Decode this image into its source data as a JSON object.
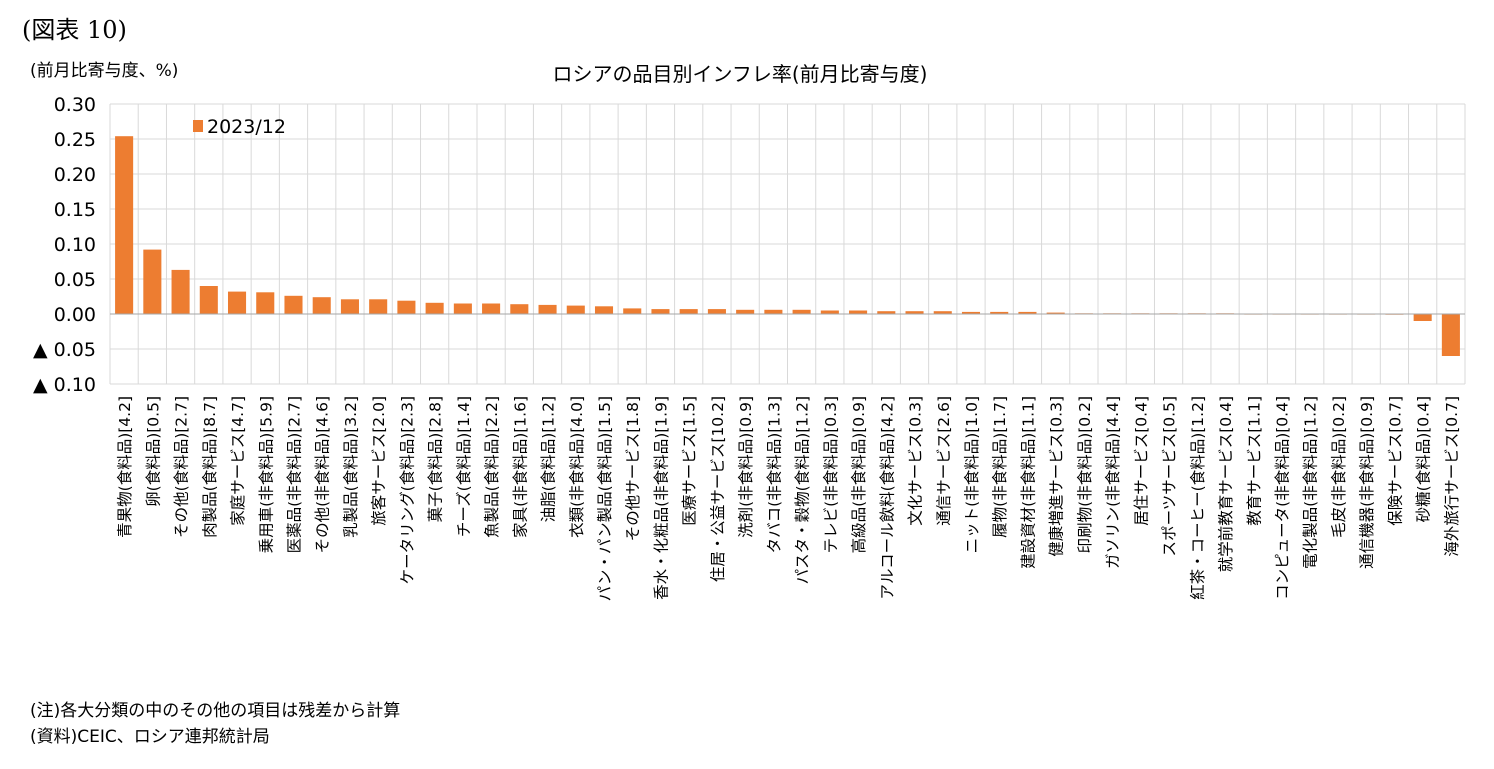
{
  "figure_label": "(図表 10)",
  "unit_label": "(前月比寄与度、%)",
  "notes": [
    "(注)各大分類の中のその他の項目は残差から計算",
    "(資料)CEIC、ロシア連邦統計局"
  ],
  "colors": {
    "bar": "#ED7D31",
    "grid": "#D9D9D9",
    "axis": "#A6A6A6"
  },
  "chart_data": {
    "type": "bar",
    "title": "ロシアの品目別インフレ率(前月比寄与度)",
    "xlabel": "",
    "ylabel": "",
    "ylim": [
      -0.1,
      0.3
    ],
    "yticks": [
      0.3,
      0.25,
      0.2,
      0.15,
      0.1,
      0.05,
      0.0,
      -0.05,
      -0.1
    ],
    "ytick_labels": [
      "0.30",
      "0.25",
      "0.20",
      "0.15",
      "0.10",
      "0.05",
      "0.00",
      "▲ 0.05",
      "▲ 0.10"
    ],
    "grid": true,
    "legend_position": "top-left",
    "categories": [
      "青果物(食料品)[4.2]",
      "卵(食料品)[0.5]",
      "その他(食料品)[2.7]",
      "肉製品(食料品)[8.7]",
      "家庭サービス[4.7]",
      "乗用車(非食料品)[5.9]",
      "医薬品(非食料品)[2.7]",
      "その他(非食料品)[4.6]",
      "乳製品(食料品)[3.2]",
      "旅客サービス[2.0]",
      "ケータリング(食料品)[2.3]",
      "菓子(食料品)[2.8]",
      "チーズ(食料品)[1.4]",
      "魚製品(食料品)[2.2]",
      "家具(非食料品)[1.6]",
      "油脂(食料品)[1.2]",
      "衣類(非食料品)[4.0]",
      "パン・パン製品(食料品)[1.5]",
      "その他サービス[1.8]",
      "香水・化粧品(非食料品)[1.9]",
      "医療サービス[1.5]",
      "住居・公益サービス[10.2]",
      "洗剤(非食料品)[0.9]",
      "タバコ(非食料品)[1.3]",
      "パスタ・穀物(食料品)[1.2]",
      "テレビ(非食料品)[0.3]",
      "高級品(非食料品)[0.9]",
      "アルコール飲料(食料品)[4.2]",
      "文化サービス[0.3]",
      "通信サービス[2.6]",
      "ニット(非食料品)[1.0]",
      "履物(非食料品)[1.7]",
      "建設資材(非食料品)[1.1]",
      "健康増進サービス[0.3]",
      "印刷物(非食料品)[0.2]",
      "ガソリン(非食料品)[4.4]",
      "居住サービス[0.4]",
      "スポーツサービス[0.5]",
      "紅茶・コーヒー(食料品)[1.2]",
      "就学前教育サービス[0.4]",
      "教育サービス[1.1]",
      "コンピュータ(非食料品)[0.4]",
      "電化製品(非食料品)[1.2]",
      "毛皮(非食料品)[0.2]",
      "通信機器(非食料品)[0.9]",
      "保険サービス[0.7]",
      "砂糖(食料品)[0.4]",
      "海外旅行サービス[0.7]"
    ],
    "series": [
      {
        "name": "2023/12",
        "color": "#ED7D31",
        "values": [
          0.254,
          0.092,
          0.063,
          0.04,
          0.032,
          0.031,
          0.026,
          0.024,
          0.021,
          0.021,
          0.019,
          0.016,
          0.015,
          0.015,
          0.014,
          0.013,
          0.012,
          0.011,
          0.008,
          0.007,
          0.007,
          0.007,
          0.006,
          0.006,
          0.006,
          0.005,
          0.005,
          0.004,
          0.004,
          0.004,
          0.003,
          0.003,
          0.003,
          0.002,
          0.001,
          0.001,
          0.001,
          0.001,
          0.001,
          0.001,
          0.0,
          0.0,
          0.0,
          0.0,
          0.0,
          -0.001,
          -0.01,
          -0.06
        ]
      }
    ]
  }
}
